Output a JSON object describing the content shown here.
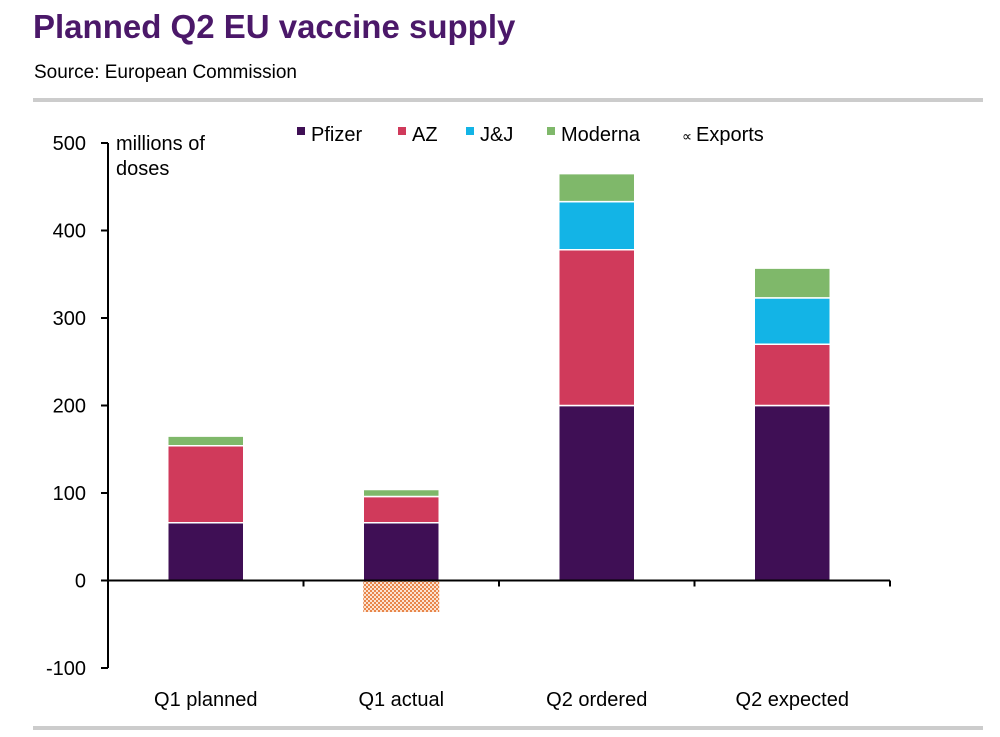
{
  "title": "Planned Q2 EU vaccine supply",
  "source": "Source:  European Commission",
  "chart_data": {
    "type": "bar",
    "stacked": true,
    "title": "Planned Q2 EU vaccine supply",
    "ylabel": "millions of doses",
    "ylabel_lines": [
      "millions of",
      "doses"
    ],
    "ylim": [
      -100,
      500
    ],
    "yticks": [
      500,
      400,
      300,
      200,
      100,
      0,
      -100
    ],
    "categories": [
      "Q1 planned",
      "Q1 actual",
      "Q2 ordered",
      "Q2 expected"
    ],
    "series": [
      {
        "name": "Pfizer",
        "color": "#3f0f55",
        "values": [
          66,
          66,
          200,
          200
        ]
      },
      {
        "name": "AZ",
        "color": "#d03a5b",
        "values": [
          88,
          30,
          178,
          70
        ]
      },
      {
        "name": "J&J",
        "color": "#13b4e6",
        "values": [
          0,
          0,
          55,
          53
        ]
      },
      {
        "name": "Moderna",
        "color": "#7fb86a",
        "values": [
          11,
          8,
          32,
          34
        ]
      },
      {
        "name": "Exports",
        "color": "#e8864a",
        "pattern": "checker",
        "values": [
          0,
          -36,
          0,
          0
        ]
      }
    ],
    "legend_position": "top",
    "grid": false
  }
}
